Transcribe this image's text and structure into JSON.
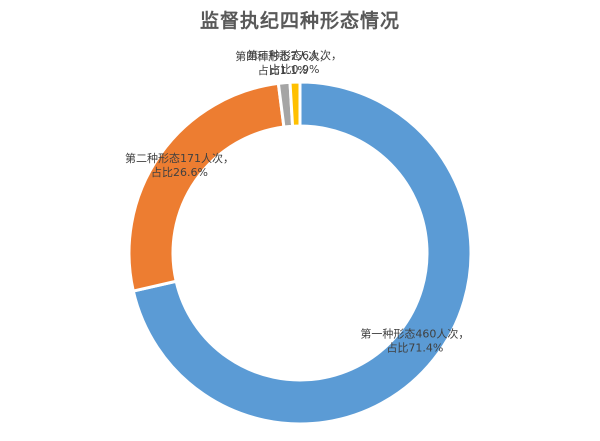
{
  "chart_data": {
    "type": "pie",
    "style": "donut",
    "title": "监督执纪四种形态情况",
    "categories": [
      "第一种形态",
      "第二种形态",
      "第四种形态",
      "第三种形态"
    ],
    "values": [
      460,
      171,
      7,
      6
    ],
    "unit": "人次",
    "colors": [
      "#5B9BD5",
      "#ED7D31",
      "#A5A5A5",
      "#FFC000"
    ],
    "labels": [
      {
        "line1": "第一种形态460人次，",
        "line2": "占比71.4%"
      },
      {
        "line1": "第二种形态171人次，",
        "line2": "占比26.6%"
      },
      {
        "line1": "第四种形态7人次，",
        "line2": "占比1.1%"
      },
      {
        "line1": "第三种形态6人次，",
        "line2": "占比0.9%"
      }
    ]
  }
}
